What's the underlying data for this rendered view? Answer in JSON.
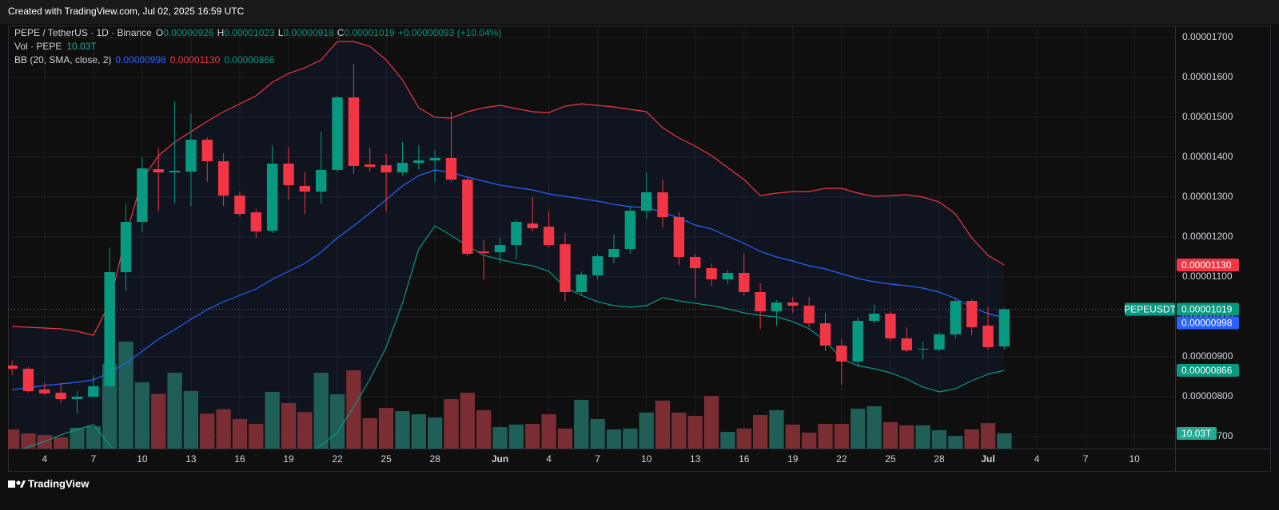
{
  "header": "Created with TradingView.com, Jul 02, 2025 16:59 UTC",
  "footer": "TradingView",
  "legend": {
    "symbol": "PEPE / TetherUS · 1D · Binance",
    "ohlc": [
      {
        "key": "O",
        "value": "0.00000926"
      },
      {
        "key": "H",
        "value": "0.00001023"
      },
      {
        "key": "L",
        "value": "0.00000918"
      },
      {
        "key": "C",
        "value": "0.00001019"
      }
    ],
    "change": "+0.00000093 (+10.04%)",
    "volume_name": "Vol · PEPE",
    "volume_value": "10.03T",
    "bb_name": "BB (20, SMA, close, 2)",
    "bb_values": [
      "0.00000998",
      "0.00001130",
      "0.00000866"
    ]
  },
  "chart_data": {
    "type": "candlestick",
    "up_color": "#089981",
    "down_color": "#f23645",
    "volume_up_color": "#1f5f58",
    "volume_down_color": "#7a2e34",
    "bb_colors": {
      "middle": "#2962ff",
      "upper": "#f23645",
      "lower": "#089981"
    },
    "xlim": [
      -0.25,
      71.5
    ],
    "xticks": [
      {
        "value": 2,
        "label": "4"
      },
      {
        "value": 5,
        "label": "7"
      },
      {
        "value": 8,
        "label": "10"
      },
      {
        "value": 11,
        "label": "13"
      },
      {
        "value": 14,
        "label": "16"
      },
      {
        "value": 17,
        "label": "19"
      },
      {
        "value": 20,
        "label": "22"
      },
      {
        "value": 23,
        "label": "25"
      },
      {
        "value": 26,
        "label": "28"
      },
      {
        "value": 30,
        "label": "Jun"
      },
      {
        "value": 33,
        "label": "4"
      },
      {
        "value": 36,
        "label": "7"
      },
      {
        "value": 39,
        "label": "10"
      },
      {
        "value": 42,
        "label": "13"
      },
      {
        "value": 45,
        "label": "16"
      },
      {
        "value": 48,
        "label": "19"
      },
      {
        "value": 51,
        "label": "22"
      },
      {
        "value": 54,
        "label": "25"
      },
      {
        "value": 57,
        "label": "28"
      },
      {
        "value": 60,
        "label": "Jul"
      },
      {
        "value": 63,
        "label": "4"
      },
      {
        "value": 66,
        "label": "7"
      },
      {
        "value": 69,
        "label": "10"
      }
    ],
    "ylim": [
      6.7e-06,
      1.73e-05
    ],
    "yticks": [
      {
        "value": 1.7e-05,
        "label": "0.00001700"
      },
      {
        "value": 1.6e-05,
        "label": "0.00001600"
      },
      {
        "value": 1.5e-05,
        "label": "0.00001500"
      },
      {
        "value": 1.4e-05,
        "label": "0.00001400"
      },
      {
        "value": 1.3e-05,
        "label": "0.00001300"
      },
      {
        "value": 1.2e-05,
        "label": "0.00001200"
      },
      {
        "value": 1.1e-05,
        "label": "0.00001100"
      },
      {
        "value": 1e-05,
        "label": "0.00001000"
      },
      {
        "value": 9e-06,
        "label": "0.00000900"
      },
      {
        "value": 8e-06,
        "label": "0.00000800"
      },
      {
        "value": 7e-06,
        "label": "0.00000700"
      }
    ],
    "volume_lim": [
      0,
      279
    ],
    "x": [
      0,
      1,
      2,
      3,
      4,
      5,
      6,
      7,
      8,
      9,
      10,
      11,
      12,
      13,
      14,
      15,
      16,
      17,
      18,
      19,
      20,
      21,
      22,
      23,
      24,
      25,
      26,
      27,
      28,
      29,
      30,
      31,
      32,
      33,
      34,
      35,
      36,
      37,
      38,
      39,
      40,
      41,
      42,
      43,
      44,
      45,
      46,
      47,
      48,
      49,
      50,
      51,
      52,
      53,
      54,
      55,
      56,
      57,
      58,
      59,
      60,
      61
    ],
    "open": [
      8.78e-06,
      8.7e-06,
      8.18e-06,
      8.1e-06,
      7.94e-06,
      8e-06,
      8.26e-06,
      1.112e-05,
      1.238e-05,
      1.37e-05,
      1.362e-05,
      1.364e-05,
      1.444e-05,
      1.39e-05,
      1.304e-05,
      1.262e-05,
      1.216e-05,
      1.384e-05,
      1.328e-05,
      1.314e-05,
      1.368e-05,
      1.55e-05,
      1.382e-05,
      1.38e-05,
      1.362e-05,
      1.386e-05,
      1.392e-05,
      1.398e-05,
      1.344e-05,
      1.164e-05,
      1.162e-05,
      1.18e-05,
      1.234e-05,
      1.226e-05,
      1.182e-05,
      1.062e-05,
      1.104e-05,
      1.15e-05,
      1.17e-05,
      1.266e-05,
      1.312e-05,
      1.25e-05,
      1.15e-05,
      1.122e-05,
      1.094e-05,
      1.11e-05,
      1.062e-05,
      1.014e-05,
      1.036e-05,
      1.028e-05,
      9.84e-06,
      9.28e-06,
      8.88e-06,
      9.9e-06,
      1.008e-05,
      9.46e-06,
      9.18e-06,
      9.18e-06,
      9.56e-06,
      1.04e-05,
      9.78e-06,
      9.26e-06
    ],
    "high": [
      8.9e-06,
      8.74e-06,
      8.34e-06,
      8.34e-06,
      8.14e-06,
      8.54e-06,
      1.174e-05,
      1.284e-05,
      1.4e-05,
      1.424e-05,
      1.54e-05,
      1.51e-05,
      1.45e-05,
      1.41e-05,
      1.314e-05,
      1.27e-05,
      1.43e-05,
      1.424e-05,
      1.364e-05,
      1.464e-05,
      1.554e-05,
      1.634e-05,
      1.424e-05,
      1.408e-05,
      1.438e-05,
      1.43e-05,
      1.418e-05,
      1.514e-05,
      1.35e-05,
      1.194e-05,
      1.198e-05,
      1.244e-05,
      1.3e-05,
      1.264e-05,
      1.21e-05,
      1.114e-05,
      1.158e-05,
      1.208e-05,
      1.278e-05,
      1.362e-05,
      1.344e-05,
      1.262e-05,
      1.158e-05,
      1.134e-05,
      1.118e-05,
      1.158e-05,
      1.084e-05,
      1.042e-05,
      1.05e-05,
      1.05e-05,
      1.01e-05,
      9.44e-06,
      9.98e-06,
      1.03e-05,
      1.014e-05,
      9.74e-06,
      9.38e-06,
      9.62e-06,
      1.048e-05,
      1.044e-05,
      1.024e-05,
      1.023e-05
    ],
    "low": [
      8.54e-06,
      8.1e-06,
      8.04e-06,
      7.84e-06,
      7.58e-06,
      7.98e-06,
      8.22e-06,
      1.064e-05,
      1.214e-05,
      1.264e-05,
      1.284e-05,
      1.278e-05,
      1.338e-05,
      1.278e-05,
      1.25e-05,
      1.198e-05,
      1.21e-05,
      1.294e-05,
      1.258e-05,
      1.284e-05,
      1.362e-05,
      1.358e-05,
      1.364e-05,
      1.264e-05,
      1.354e-05,
      1.37e-05,
      1.338e-05,
      1.338e-05,
      1.152e-05,
      1.094e-05,
      1.134e-05,
      1.144e-05,
      1.214e-05,
      1.174e-05,
      1.038e-05,
      1.054e-05,
      1.094e-05,
      1.134e-05,
      1.158e-05,
      1.244e-05,
      1.224e-05,
      1.13e-05,
      1.048e-05,
      1.078e-05,
      1.082e-05,
      1.054e-05,
      9.7e-06,
      9.78e-06,
      1.01e-05,
      9.74e-06,
      9.14e-06,
      8.3e-06,
      8.74e-06,
      9.84e-06,
      9.38e-06,
      9.12e-06,
      8.94e-06,
      9.14e-06,
      9.46e-06,
      9.54e-06,
      9.18e-06,
      9.18e-06
    ],
    "close": [
      8.7e-06,
      8.14e-06,
      8.08e-06,
      7.94e-06,
      8e-06,
      8.26e-06,
      1.112e-05,
      1.238e-05,
      1.372e-05,
      1.362e-05,
      1.366e-05,
      1.444e-05,
      1.39e-05,
      1.304e-05,
      1.258e-05,
      1.214e-05,
      1.384e-05,
      1.33e-05,
      1.314e-05,
      1.368e-05,
      1.55e-05,
      1.378e-05,
      1.376e-05,
      1.362e-05,
      1.386e-05,
      1.392e-05,
      1.398e-05,
      1.344e-05,
      1.158e-05,
      1.16e-05,
      1.18e-05,
      1.238e-05,
      1.222e-05,
      1.18e-05,
      1.062e-05,
      1.106e-05,
      1.152e-05,
      1.17e-05,
      1.266e-05,
      1.312e-05,
      1.25e-05,
      1.15e-05,
      1.122e-05,
      1.094e-05,
      1.11e-05,
      1.062e-05,
      1.014e-05,
      1.036e-05,
      1.028e-05,
      9.84e-06,
      9.28e-06,
      8.88e-06,
      9.9e-06,
      1.008e-05,
      9.46e-06,
      9.16e-06,
      9.2e-06,
      9.56e-06,
      1.04e-05,
      9.74e-06,
      9.24e-06,
      1.019e-05
    ],
    "volume": [
      12.6,
      10,
      9,
      7.4,
      13.7,
      14.7,
      56,
      70.5,
      43.7,
      36,
      50,
      38,
      23,
      26,
      19.5,
      16.3,
      37.4,
      30,
      24,
      50,
      35.8,
      51.6,
      20,
      26.8,
      24.7,
      22.6,
      20.5,
      32.6,
      36.8,
      25.3,
      14.2,
      15.8,
      16.3,
      22.6,
      13.2,
      32.1,
      19.5,
      12.6,
      13.2,
      23.7,
      31.6,
      23.7,
      21.6,
      34.7,
      11,
      13.2,
      22.1,
      25.3,
      15.8,
      10.5,
      16.3,
      16.3,
      26.3,
      27.9,
      17.4,
      15.3,
      15.3,
      12.1,
      8.4,
      12.6,
      16.8,
      10.03
    ],
    "bb": {
      "upper": [
        9.76e-06,
        9.74e-06,
        9.72e-06,
        9.7e-06,
        9.64e-06,
        9.54e-06,
        1.034e-05,
        1.204e-05,
        1.344e-05,
        1.404e-05,
        1.438e-05,
        1.464e-05,
        1.49e-05,
        1.514e-05,
        1.534e-05,
        1.554e-05,
        1.588e-05,
        1.61e-05,
        1.624e-05,
        1.644e-05,
        1.69e-05,
        1.69e-05,
        1.678e-05,
        1.644e-05,
        1.594e-05,
        1.524e-05,
        1.5e-05,
        1.498e-05,
        1.514e-05,
        1.524e-05,
        1.53e-05,
        1.522e-05,
        1.514e-05,
        1.512e-05,
        1.528e-05,
        1.534e-05,
        1.53e-05,
        1.526e-05,
        1.52e-05,
        1.514e-05,
        1.474e-05,
        1.448e-05,
        1.428e-05,
        1.404e-05,
        1.374e-05,
        1.344e-05,
        1.304e-05,
        1.31e-05,
        1.314e-05,
        1.314e-05,
        1.322e-05,
        1.322e-05,
        1.31e-05,
        1.302e-05,
        1.304e-05,
        1.306e-05,
        1.3e-05,
        1.288e-05,
        1.258e-05,
        1.198e-05,
        1.154e-05,
        1.13e-05
      ],
      "middle": [
        8.18e-06,
        8.22e-06,
        8.28e-06,
        8.32e-06,
        8.36e-06,
        8.42e-06,
        8.6e-06,
        8.84e-06,
        9.14e-06,
        9.44e-06,
        9.68e-06,
        9.94e-06,
        1.018e-05,
        1.038e-05,
        1.054e-05,
        1.07e-05,
        1.094e-05,
        1.114e-05,
        1.134e-05,
        1.162e-05,
        1.198e-05,
        1.228e-05,
        1.26e-05,
        1.294e-05,
        1.328e-05,
        1.354e-05,
        1.368e-05,
        1.362e-05,
        1.35e-05,
        1.34e-05,
        1.33e-05,
        1.324e-05,
        1.318e-05,
        1.308e-05,
        1.302e-05,
        1.296e-05,
        1.29e-05,
        1.282e-05,
        1.276e-05,
        1.274e-05,
        1.262e-05,
        1.248e-05,
        1.23e-05,
        1.22e-05,
        1.202e-05,
        1.184e-05,
        1.164e-05,
        1.15e-05,
        1.14e-05,
        1.128e-05,
        1.12e-05,
        1.108e-05,
        1.096e-05,
        1.088e-05,
        1.082e-05,
        1.078e-05,
        1.072e-05,
        1.062e-05,
        1.046e-05,
        1.024e-05,
        1.008e-05,
        9.98e-06
      ],
      "lower": [
        6.58e-06,
        6.74e-06,
        6.88e-06,
        7.04e-06,
        7.18e-06,
        7.3e-06,
        6.78e-06,
        6.44e-06,
        6.14e-06,
        5.94e-06,
        5.84e-06,
        5.84e-06,
        5.84e-06,
        5.84e-06,
        5.88e-06,
        5.94e-06,
        5.98e-06,
        6.14e-06,
        6.54e-06,
        6.78e-06,
        7.1e-06,
        7.74e-06,
        8.44e-06,
        9.24e-06,
        1.034e-05,
        1.17e-05,
        1.228e-05,
        1.204e-05,
        1.178e-05,
        1.154e-05,
        1.144e-05,
        1.134e-05,
        1.128e-05,
        1.114e-05,
        1.074e-05,
        1.054e-05,
        1.038e-05,
        1.028e-05,
        1.024e-05,
        1.028e-05,
        1.048e-05,
        1.04e-05,
        1.034e-05,
        1.028e-05,
        1.02e-05,
        1.01e-05,
        1.004e-05,
        1e-05,
        9.88e-06,
        9.7e-06,
        9.4e-06,
        8.94e-06,
        8.78e-06,
        8.7e-06,
        8.6e-06,
        8.44e-06,
        8.24e-06,
        8.12e-06,
        8.2e-06,
        8.4e-06,
        8.56e-06,
        8.66e-06
      ]
    },
    "price_tags": [
      {
        "value": 1.13e-05,
        "label": "0.00001130",
        "color": "#f23645"
      },
      {
        "name": "PEPEUSDT",
        "value": 1.019e-05,
        "label": "0.00001019",
        "color": "#089981"
      },
      {
        "value": 9.98e-06,
        "label": "0.00000998",
        "color": "#2962ff"
      },
      {
        "value": 8.66e-06,
        "label": "0.00000866",
        "color": "#089981"
      }
    ],
    "volume_tag": {
      "value": 10.03,
      "label": "10.03T",
      "color": "#22ab94"
    }
  }
}
